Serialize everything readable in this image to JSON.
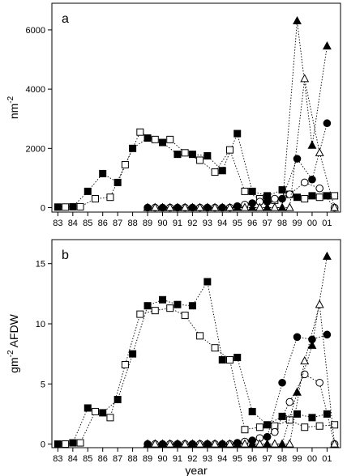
{
  "chart_data": [
    {
      "type": "scatter",
      "panel_label": "a",
      "ylabel": "nm",
      "ylabel_sup": "-2",
      "xlabel": "",
      "x_tick_labels": [
        "83",
        "84",
        "85",
        "86",
        "87",
        "88",
        "89",
        "90",
        "91",
        "92",
        "93",
        "94",
        "95",
        "96",
        "97",
        "98",
        "99",
        "00",
        "01"
      ],
      "xlim": [
        1982.6,
        2001.9
      ],
      "ylim": [
        -150,
        6900
      ],
      "yticks": [
        0,
        2000,
        4000,
        6000
      ],
      "grid": false,
      "series": [
        {
          "marker": "filled-square",
          "color": "#000000",
          "connected": true,
          "x": [
            1983.0,
            1984.0,
            1985.0,
            1986.0,
            1987.0,
            1988.0,
            1989.0,
            1990.0,
            1991.0,
            1992.0,
            1993.0,
            1994.0,
            1995.0,
            1996.0,
            1997.0,
            1998.0,
            1999.0,
            2000.0,
            2001.0
          ],
          "y": [
            20,
            30,
            550,
            1150,
            850,
            2000,
            2350,
            2200,
            1800,
            1800,
            1750,
            1250,
            2500,
            550,
            400,
            600,
            350,
            400,
            400
          ]
        },
        {
          "marker": "open-square",
          "color": "#000000",
          "connected": true,
          "x": [
            1983.5,
            1984.5,
            1985.5,
            1986.5,
            1987.5,
            1988.5,
            1989.5,
            1990.5,
            1991.5,
            1992.5,
            1993.5,
            1994.5,
            1995.5,
            1996.5,
            1997.5,
            1998.5,
            1999.5,
            2000.5,
            2001.5
          ],
          "y": [
            20,
            30,
            300,
            350,
            1450,
            2550,
            2300,
            2300,
            1850,
            1600,
            1200,
            1950,
            550,
            300,
            250,
            450,
            300,
            350,
            400
          ]
        },
        {
          "marker": "filled-circle",
          "color": "#000000",
          "connected": true,
          "x": [
            1989.0,
            1990.0,
            1991.0,
            1992.0,
            1993.0,
            1994.0,
            1995.0,
            1996.0,
            1997.0,
            1998.0,
            1999.0,
            2000.0,
            2001.0
          ],
          "y": [
            0,
            0,
            0,
            0,
            0,
            0,
            50,
            150,
            200,
            300,
            1650,
            950,
            2850
          ]
        },
        {
          "marker": "open-circle",
          "color": "#000000",
          "connected": true,
          "x": [
            1989.5,
            1990.5,
            1991.5,
            1992.5,
            1993.5,
            1994.5,
            1995.5,
            1996.5,
            1997.5,
            1998.5,
            1999.5,
            2000.5,
            2001.5
          ],
          "y": [
            0,
            0,
            0,
            0,
            0,
            0,
            100,
            200,
            300,
            450,
            850,
            650,
            0
          ]
        },
        {
          "marker": "filled-triangle",
          "color": "#000000",
          "connected": true,
          "x": [
            1989.0,
            1990.0,
            1991.0,
            1992.0,
            1993.0,
            1994.0,
            1995.0,
            1996.0,
            1997.0,
            1998.0,
            1999.0,
            2000.0,
            2001.0
          ],
          "y": [
            0,
            0,
            0,
            0,
            0,
            0,
            0,
            0,
            0,
            0,
            6300,
            2100,
            5450
          ]
        },
        {
          "marker": "open-triangle",
          "color": "#000000",
          "connected": true,
          "x": [
            1989.5,
            1990.5,
            1991.5,
            1992.5,
            1993.5,
            1994.5,
            1995.5,
            1996.5,
            1997.5,
            1998.5,
            1999.5,
            2000.5,
            2001.5
          ],
          "y": [
            0,
            0,
            0,
            0,
            0,
            0,
            0,
            0,
            0,
            0,
            4350,
            1850,
            0
          ]
        }
      ]
    },
    {
      "type": "scatter",
      "panel_label": "b",
      "ylabel": "gm",
      "ylabel_sup": "-2",
      "ylabel_suffix": "AFDW",
      "xlabel": "year",
      "x_tick_labels": [
        "83",
        "84",
        "85",
        "86",
        "87",
        "88",
        "89",
        "90",
        "91",
        "92",
        "93",
        "94",
        "95",
        "96",
        "97",
        "98",
        "99",
        "00",
        "01"
      ],
      "xlim": [
        1982.6,
        2001.9
      ],
      "ylim": [
        -0.3,
        17.0
      ],
      "yticks": [
        0,
        5,
        10,
        15
      ],
      "grid": false,
      "series": [
        {
          "marker": "filled-square",
          "color": "#000000",
          "connected": true,
          "x": [
            1983.0,
            1984.0,
            1985.0,
            1986.0,
            1987.0,
            1988.0,
            1989.0,
            1990.0,
            1991.0,
            1992.0,
            1993.0,
            1994.0,
            1995.0,
            1996.0,
            1997.0,
            1998.0,
            1999.0,
            2000.0,
            2001.0
          ],
          "y": [
            0,
            0.1,
            3.0,
            2.6,
            3.7,
            7.5,
            11.5,
            12.0,
            11.6,
            11.5,
            13.5,
            7.0,
            7.2,
            2.7,
            1.6,
            2.3,
            2.5,
            2.2,
            2.5
          ]
        },
        {
          "marker": "open-square",
          "color": "#000000",
          "connected": true,
          "x": [
            1983.5,
            1984.5,
            1985.5,
            1986.5,
            1987.5,
            1988.5,
            1989.5,
            1990.5,
            1991.5,
            1992.5,
            1993.5,
            1994.5,
            1995.5,
            1996.5,
            1997.5,
            1998.5,
            1999.5,
            2000.5,
            2001.5
          ],
          "y": [
            0,
            0.1,
            2.7,
            2.2,
            6.6,
            10.8,
            11.1,
            11.3,
            10.7,
            9.0,
            8.0,
            7.0,
            1.2,
            1.4,
            1.5,
            2.0,
            1.4,
            1.5,
            1.6
          ]
        },
        {
          "marker": "filled-circle",
          "color": "#000000",
          "connected": true,
          "x": [
            1989.0,
            1990.0,
            1991.0,
            1992.0,
            1993.0,
            1994.0,
            1995.0,
            1996.0,
            1997.0,
            1998.0,
            1999.0,
            2000.0,
            2001.0
          ],
          "y": [
            0,
            0,
            0,
            0,
            0,
            0,
            0.1,
            0.3,
            0.6,
            5.1,
            8.9,
            8.7,
            9.1
          ]
        },
        {
          "marker": "open-circle",
          "color": "#000000",
          "connected": true,
          "x": [
            1989.5,
            1990.5,
            1991.5,
            1992.5,
            1993.5,
            1994.5,
            1995.5,
            1996.5,
            1997.5,
            1998.5,
            1999.5,
            2000.5,
            2001.5
          ],
          "y": [
            0,
            0,
            0,
            0,
            0,
            0,
            0.2,
            0.5,
            1.0,
            3.5,
            5.8,
            5.1,
            0
          ]
        },
        {
          "marker": "filled-triangle",
          "color": "#000000",
          "connected": true,
          "x": [
            1989.0,
            1990.0,
            1991.0,
            1992.0,
            1993.0,
            1994.0,
            1995.0,
            1996.0,
            1997.0,
            1998.0,
            1999.0,
            2000.0,
            2001.0
          ],
          "y": [
            0,
            0,
            0,
            0,
            0,
            0,
            0,
            0,
            0,
            0,
            4.3,
            8.2,
            15.6
          ]
        },
        {
          "marker": "open-triangle",
          "color": "#000000",
          "connected": true,
          "x": [
            1989.5,
            1990.5,
            1991.5,
            1992.5,
            1993.5,
            1994.5,
            1995.5,
            1996.5,
            1997.5,
            1998.5,
            1999.5,
            2000.5,
            2001.5
          ],
          "y": [
            0,
            0,
            0,
            0,
            0,
            0,
            0,
            0,
            0,
            0,
            6.9,
            11.6,
            0
          ]
        }
      ]
    }
  ]
}
